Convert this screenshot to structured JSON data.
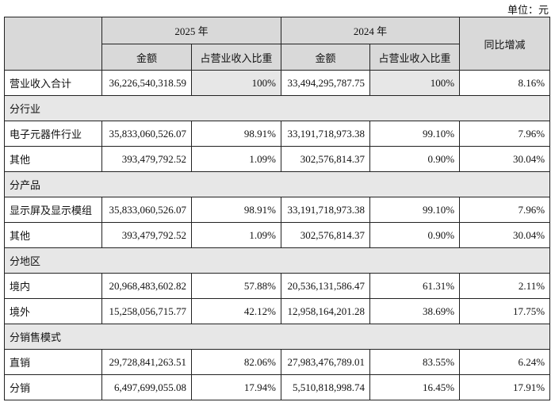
{
  "unit": "单位：元",
  "header": {
    "year_a": "2025 年",
    "year_b": "2024 年",
    "amount_a": "金额",
    "ratio_a": "占营业收入比重",
    "amount_b": "金额",
    "ratio_b": "占营业收入比重",
    "yoy": "同比增减"
  },
  "table": {
    "rows": [
      [
        "营业收入合计",
        "36,226,540,318.59",
        "100%",
        "33,494,295,787.75",
        "100%",
        "8.16%"
      ],
      [
        "分行业"
      ],
      [
        "电子元器件行业",
        "35,833,060,526.07",
        "98.91%",
        "33,191,718,973.38",
        "99.10%",
        "7.96%"
      ],
      [
        "其他",
        "393,479,792.52",
        "1.09%",
        "302,576,814.37",
        "0.90%",
        "30.04%"
      ],
      [
        "分产品"
      ],
      [
        "显示屏及显示模组",
        "35,833,060,526.07",
        "98.91%",
        "33,191,718,973.38",
        "99.10%",
        "7.96%"
      ],
      [
        "其他",
        "393,479,792.52",
        "1.09%",
        "302,576,814.37",
        "0.90%",
        "30.04%"
      ],
      [
        "分地区"
      ],
      [
        "境内",
        "20,968,483,602.82",
        "57.88%",
        "20,536,131,586.47",
        "61.31%",
        "2.11%"
      ],
      [
        "境外",
        "15,258,056,715.77",
        "42.12%",
        "12,958,164,201.28",
        "38.69%",
        "17.75%"
      ],
      [
        "分销售模式"
      ],
      [
        "直销",
        "29,728,841,263.51",
        "82.06%",
        "27,983,476,789.01",
        "83.55%",
        "6.24%"
      ],
      [
        "分销",
        "6,497,699,055.08",
        "17.94%",
        "5,510,818,998.74",
        "16.45%",
        "17.91%"
      ]
    ]
  }
}
